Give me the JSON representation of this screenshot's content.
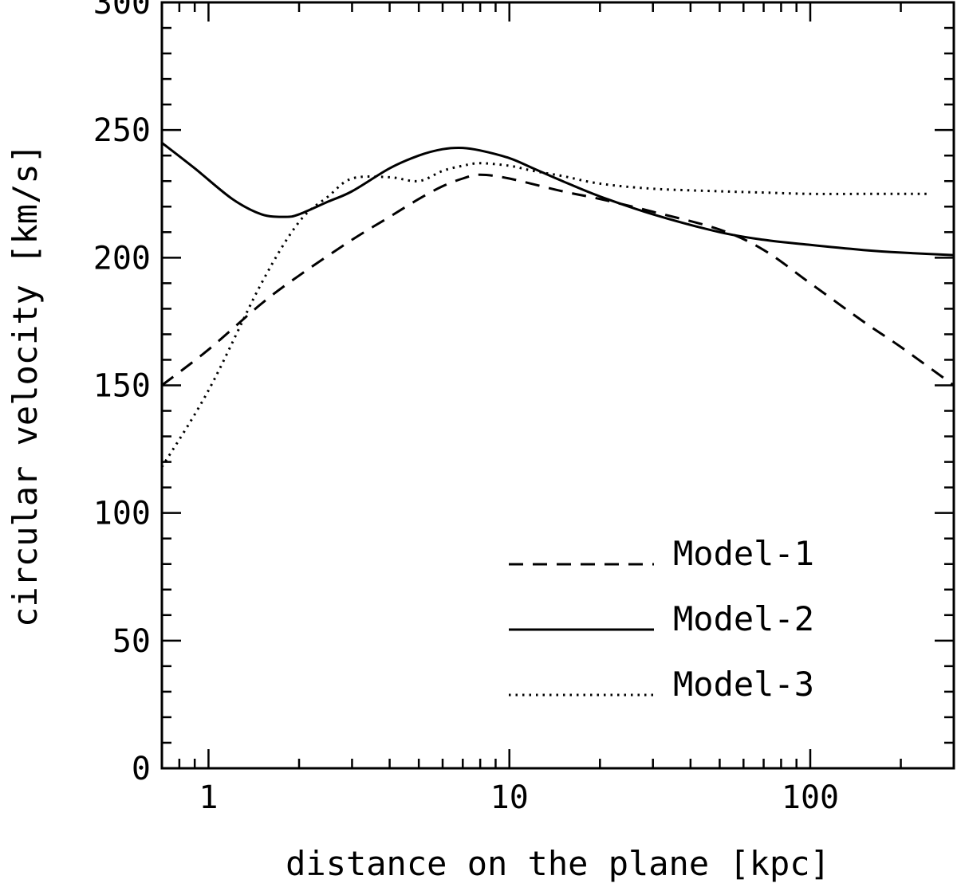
{
  "chart_data": {
    "type": "line",
    "xlabel": "distance on the plane [kpc]",
    "ylabel": "circular velocity [km/s]",
    "xscale": "log",
    "xlim": [
      0.7,
      300
    ],
    "ylim": [
      0,
      300
    ],
    "x_ticks": [
      {
        "value": 1,
        "label": "1"
      },
      {
        "value": 10,
        "label": "10"
      },
      {
        "value": 100,
        "label": "100"
      }
    ],
    "y_ticks": [
      {
        "value": 0,
        "label": "0"
      },
      {
        "value": 50,
        "label": "50"
      },
      {
        "value": 100,
        "label": "100"
      },
      {
        "value": 150,
        "label": "150"
      },
      {
        "value": 200,
        "label": "200"
      },
      {
        "value": 250,
        "label": "250"
      },
      {
        "value": 300,
        "label": "300"
      }
    ],
    "grid": false,
    "legend_position": "bottom-right",
    "series": [
      {
        "name": "Model-1",
        "style": "dashed",
        "color": "#000000",
        "x": [
          0.7,
          1,
          1.5,
          2,
          3,
          4,
          5,
          6,
          7,
          8,
          10,
          15,
          20,
          30,
          50,
          70,
          100,
          150,
          200,
          300
        ],
        "y": [
          150,
          164,
          182,
          193,
          207,
          216,
          223,
          228,
          231,
          232.5,
          231,
          226,
          223,
          218,
          211,
          203,
          190,
          175,
          165,
          150
        ]
      },
      {
        "name": "Model-2",
        "style": "solid",
        "color": "#000000",
        "x": [
          0.7,
          0.9,
          1.2,
          1.5,
          1.8,
          2,
          2.5,
          3,
          4,
          5,
          6,
          7,
          8,
          10,
          12,
          15,
          20,
          30,
          50,
          70,
          100,
          150,
          200,
          300
        ],
        "y": [
          245,
          235,
          223,
          217,
          216,
          217,
          222,
          226,
          235,
          240,
          242.5,
          243,
          242,
          239,
          235,
          230,
          224,
          217,
          210,
          207,
          205,
          203,
          202,
          201
        ]
      },
      {
        "name": "Model-3",
        "style": "dotted",
        "color": "#000000",
        "x": [
          0.7,
          1,
          1.5,
          2,
          2.5,
          3,
          4,
          5,
          6,
          7,
          8,
          10,
          12,
          15,
          20,
          30,
          50,
          70,
          100,
          150,
          250
        ],
        "y": [
          118,
          148,
          190,
          214,
          224,
          231,
          231.5,
          230,
          234,
          236,
          237,
          236,
          234,
          232,
          229,
          227,
          226,
          225.5,
          225,
          225,
          225
        ]
      }
    ]
  }
}
